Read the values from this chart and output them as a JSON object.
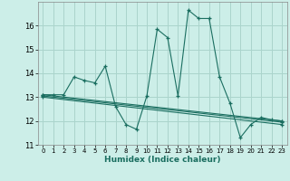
{
  "title": "",
  "xlabel": "Humidex (Indice chaleur)",
  "background_color": "#cceee8",
  "grid_color": "#aad4cc",
  "line_color": "#1a6e60",
  "xlim": [
    -0.5,
    23.5
  ],
  "ylim": [
    11,
    17
  ],
  "yticks": [
    11,
    12,
    13,
    14,
    15,
    16
  ],
  "xticks": [
    0,
    1,
    2,
    3,
    4,
    5,
    6,
    7,
    8,
    9,
    10,
    11,
    12,
    13,
    14,
    15,
    16,
    17,
    18,
    19,
    20,
    21,
    22,
    23
  ],
  "series": [
    {
      "x": [
        0,
        1,
        2,
        3,
        4,
        5,
        6,
        7,
        8,
        9,
        10,
        11,
        12,
        13,
        14,
        15,
        16,
        17,
        18,
        19,
        20,
        21,
        22,
        23
      ],
      "y": [
        13.1,
        13.1,
        13.1,
        13.85,
        13.7,
        13.6,
        14.3,
        12.6,
        11.85,
        11.65,
        13.05,
        15.85,
        15.5,
        13.05,
        16.65,
        16.3,
        16.3,
        13.85,
        12.75,
        11.3,
        11.85,
        12.15,
        12.05,
        12.0
      ]
    },
    {
      "x": [
        0,
        23
      ],
      "y": [
        13.1,
        12.0
      ]
    },
    {
      "x": [
        0,
        23
      ],
      "y": [
        13.05,
        11.95
      ]
    },
    {
      "x": [
        0,
        23
      ],
      "y": [
        13.0,
        11.85
      ]
    }
  ]
}
